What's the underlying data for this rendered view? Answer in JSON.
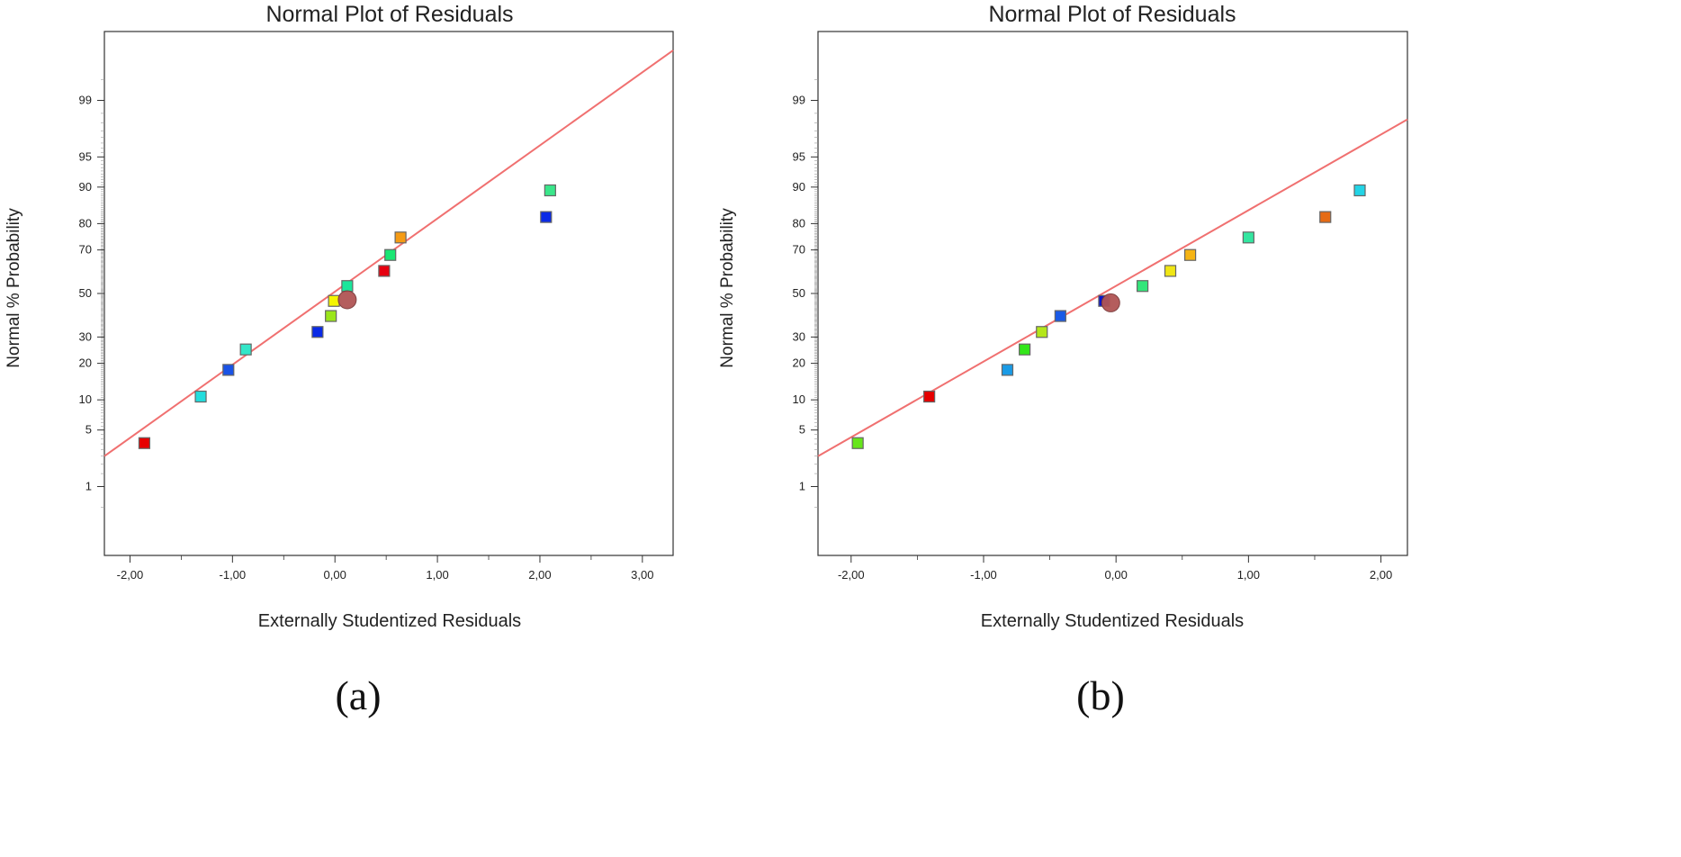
{
  "chart_data": [
    {
      "type": "scatter",
      "title": "Normal Plot of Residuals",
      "xlabel": "Externally Studentized Residuals",
      "ylabel": "Normal % Probability",
      "caption": "(a)",
      "xlim": [
        -2.25,
        3.3
      ],
      "x_ticks": [
        -2.0,
        -1.0,
        0.0,
        1.0,
        2.0,
        3.0
      ],
      "x_tick_labels": [
        "-2,00",
        "-1,00",
        "0,00",
        "1,00",
        "2,00",
        "3,00"
      ],
      "y_ticks": [
        1,
        5,
        10,
        20,
        30,
        50,
        70,
        80,
        90,
        95,
        99
      ],
      "y_tick_labels": [
        "1",
        "5",
        "10",
        "20",
        "30",
        "50",
        "70",
        "80",
        "90",
        "95",
        "99"
      ],
      "ylim_probability": [
        0.08,
        99.92
      ],
      "fit_line": {
        "color": "#f07070",
        "x": [
          -2.25,
          3.3
        ],
        "y": [
          2.5,
          99.83
        ]
      },
      "points": [
        {
          "x": -1.86,
          "y": 3.57,
          "color": "#e60000"
        },
        {
          "x": -1.31,
          "y": 10.71,
          "color": "#22dddd"
        },
        {
          "x": -1.04,
          "y": 17.86,
          "color": "#1a53e6"
        },
        {
          "x": -0.87,
          "y": 25.0,
          "color": "#33e6c8"
        },
        {
          "x": -0.17,
          "y": 32.14,
          "color": "#0a2ae6"
        },
        {
          "x": -0.04,
          "y": 39.29,
          "color": "#9be61a"
        },
        {
          "x": -0.01,
          "y": 46.43,
          "color": "#f5f500"
        },
        {
          "x": 0.12,
          "y": 53.57,
          "color": "#1ae69b"
        },
        {
          "x": 0.48,
          "y": 60.71,
          "color": "#e60010"
        },
        {
          "x": 0.54,
          "y": 67.86,
          "color": "#1ae673"
        },
        {
          "x": 0.64,
          "y": 75.0,
          "color": "#f59b14"
        },
        {
          "x": 2.06,
          "y": 82.14,
          "color": "#0a2ae6"
        },
        {
          "x": 2.1,
          "y": 89.29,
          "color": "#3ae68a"
        }
      ],
      "center_marker": {
        "x": 0.12,
        "y": 47.0,
        "color": "#b05555"
      }
    },
    {
      "type": "scatter",
      "title": "Normal Plot of Residuals",
      "xlabel": "Externally Studentized Residuals",
      "ylabel": "Normal % Probability",
      "caption": "(b)",
      "xlim": [
        -2.25,
        2.2
      ],
      "x_ticks": [
        -2.0,
        -1.0,
        0.0,
        1.0,
        2.0
      ],
      "x_tick_labels": [
        "-2,00",
        "-1,00",
        "0,00",
        "1,00",
        "2,00"
      ],
      "y_ticks": [
        1,
        5,
        10,
        20,
        30,
        50,
        70,
        80,
        90,
        95,
        99
      ],
      "y_tick_labels": [
        "1",
        "5",
        "10",
        "20",
        "30",
        "50",
        "70",
        "80",
        "90",
        "95",
        "99"
      ],
      "ylim_probability": [
        0.08,
        99.92
      ],
      "fit_line": {
        "color": "#f07070",
        "x": [
          -2.25,
          2.2
        ],
        "y": [
          2.5,
          98.2
        ]
      },
      "points": [
        {
          "x": -1.95,
          "y": 3.57,
          "color": "#66e61a"
        },
        {
          "x": -1.41,
          "y": 10.71,
          "color": "#e60000"
        },
        {
          "x": -0.82,
          "y": 17.86,
          "color": "#1a9be6"
        },
        {
          "x": -0.69,
          "y": 25.0,
          "color": "#33e61a"
        },
        {
          "x": -0.56,
          "y": 32.14,
          "color": "#b4e61a"
        },
        {
          "x": -0.42,
          "y": 39.29,
          "color": "#1a5ae6"
        },
        {
          "x": -0.09,
          "y": 46.43,
          "color": "#0a14cc"
        },
        {
          "x": 0.2,
          "y": 53.57,
          "color": "#33e67a"
        },
        {
          "x": 0.41,
          "y": 60.71,
          "color": "#f0e614"
        },
        {
          "x": 0.56,
          "y": 67.86,
          "color": "#f5b414"
        },
        {
          "x": 1.0,
          "y": 75.0,
          "color": "#33e6a0"
        },
        {
          "x": 1.58,
          "y": 82.14,
          "color": "#e66b14"
        },
        {
          "x": 1.84,
          "y": 89.29,
          "color": "#22d4e6"
        }
      ],
      "center_marker": {
        "x": -0.04,
        "y": 45.5,
        "color": "#b05555"
      }
    }
  ]
}
